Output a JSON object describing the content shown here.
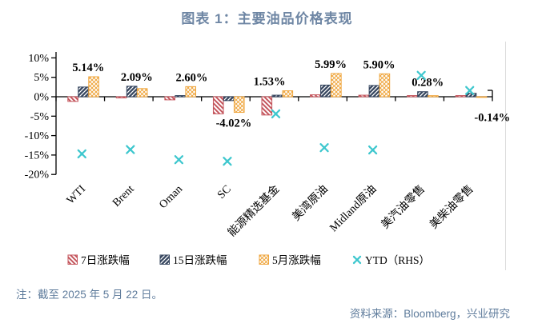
{
  "title": "图表 1：主要油品价格表现",
  "note": "注：截至 2025 年 5 月 22 日。",
  "source": "资料来源：Bloomberg，兴业研究",
  "colors": {
    "heading_text": "#6E86A4",
    "note_text": "#5F7C9C",
    "series_red": "#C4555C",
    "series_navy": "#35455E",
    "series_orange": "#EFA53C",
    "series_cyan": "#3EC7CE",
    "axis": "#000000",
    "page_divider": "#DCDCDC",
    "label_text": "#000000"
  },
  "chart_data": {
    "type": "bar",
    "title": "主要油品价格表现",
    "categories": [
      "WTI",
      "Brent",
      "Oman",
      "SC",
      "能源精选基金",
      "美湾原油",
      "Midland原油",
      "美汽油零售",
      "美柴油零售"
    ],
    "series": [
      {
        "name": "7日涨跌幅",
        "style": "red-diagonal-hatch",
        "values": [
          -1.2,
          -0.3,
          -0.8,
          -4.4,
          -4.7,
          0.5,
          0.4,
          0.3,
          0.3
        ]
      },
      {
        "name": "15日涨跌幅",
        "style": "navy-diagonal-hatch",
        "values": [
          2.5,
          2.7,
          0.3,
          -1.0,
          0.4,
          3.0,
          2.9,
          1.3,
          0.9
        ]
      },
      {
        "name": "5月涨跌幅",
        "style": "orange-crosshatch",
        "values": [
          5.14,
          2.09,
          2.6,
          -4.02,
          1.53,
          5.99,
          5.9,
          0.28,
          -0.14
        ],
        "labels": [
          "5.14%",
          "2.09%",
          "2.60%",
          "-4.02%",
          "1.53%",
          "5.99%",
          "5.90%",
          "0.28%",
          "-0.14%"
        ]
      },
      {
        "name": "YTD（RHS）",
        "style": "cyan-x-marker",
        "type": "scatter",
        "values_left_axis_reading": [
          -14.7,
          -13.6,
          -16.2,
          -16.6,
          -4.4,
          -13.1,
          -13.7,
          5.5,
          1.6
        ]
      }
    ],
    "y_ticks": [
      "10%",
      "5%",
      "0%",
      "-5%",
      "-10%",
      "-15%",
      "-20%"
    ],
    "ylim": [
      -20,
      10
    ],
    "xlabel": "",
    "ylabel": "",
    "grid": false,
    "legend_position": "bottom"
  }
}
